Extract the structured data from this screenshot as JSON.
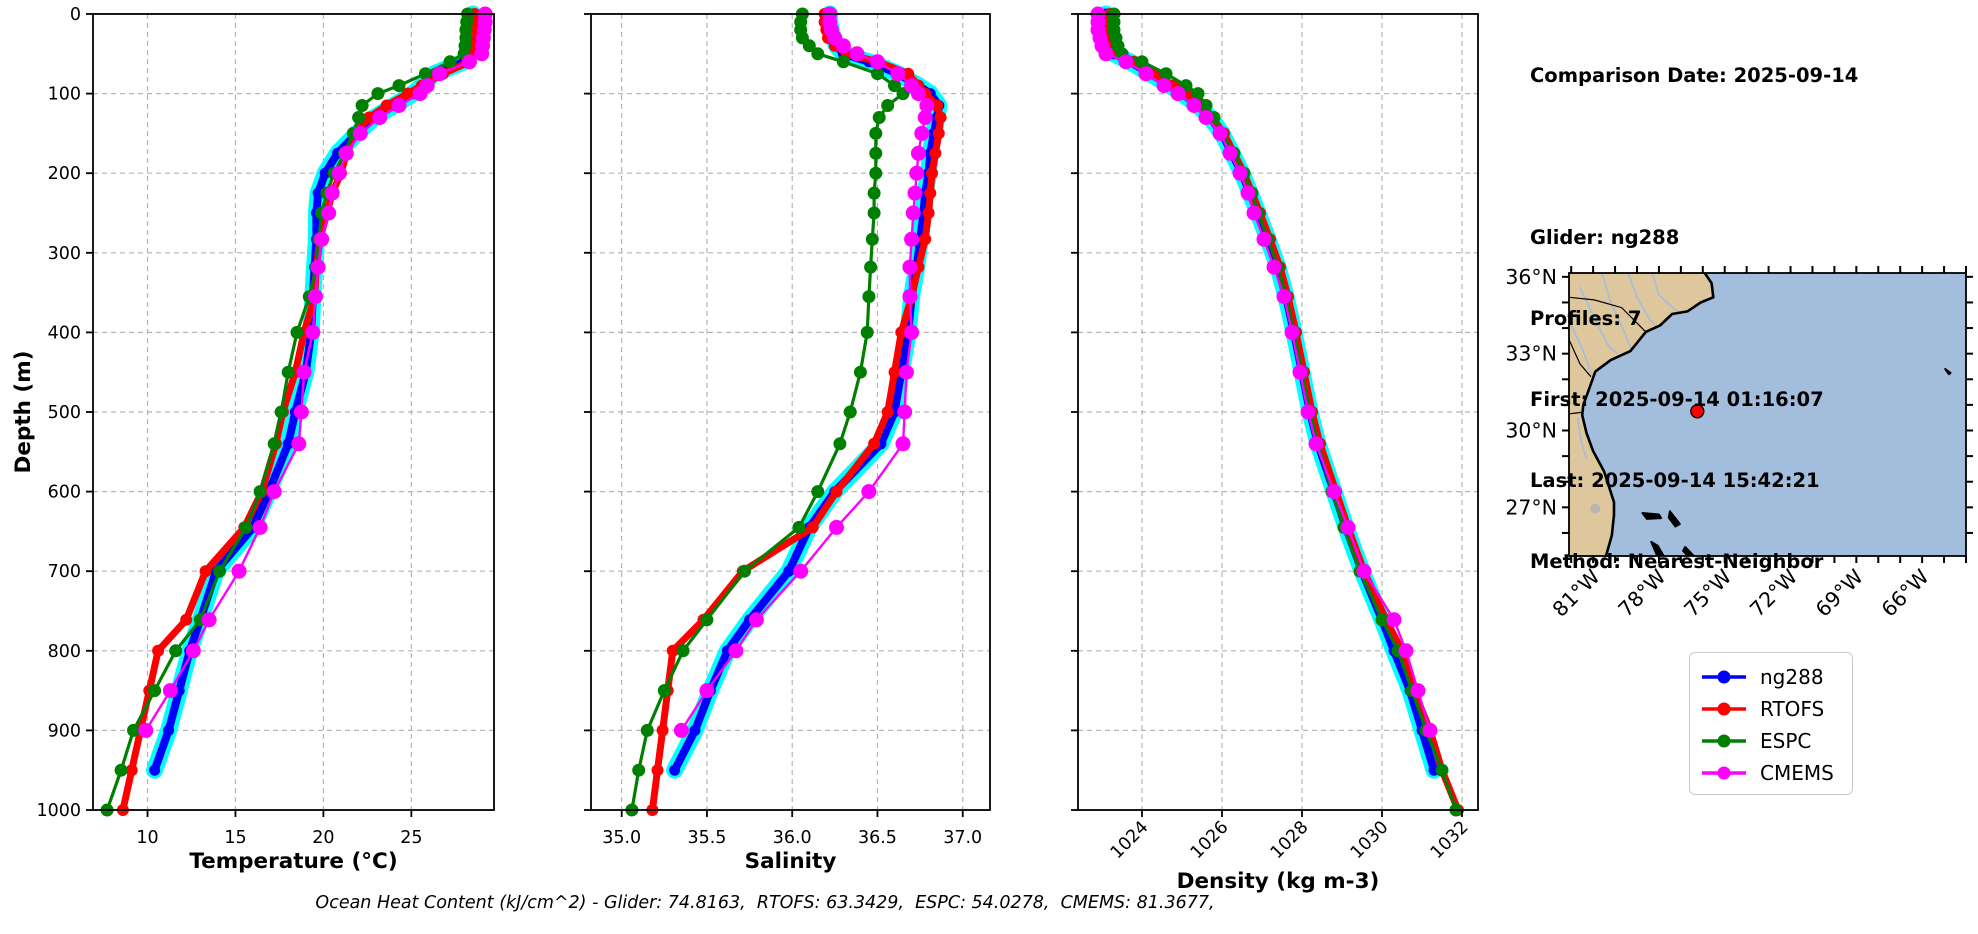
{
  "info_panel": {
    "comparison_date": "Comparison Date: 2025-09-14",
    "lines": [
      "Glider: ng288",
      "Profiles: 7",
      "First: 2025-09-14 01:16:07",
      "Last: 2025-09-14 15:42:21",
      "Method: Nearest-Neighbor"
    ]
  },
  "legend": {
    "items": [
      {
        "label": "ng288",
        "color": "#0000ff"
      },
      {
        "label": "RTOFS",
        "color": "#ff0000"
      },
      {
        "label": "ESPC",
        "color": "#008000"
      },
      {
        "label": "CMEMS",
        "color": "#ff00ff"
      }
    ]
  },
  "footer": {
    "text": "Ocean Heat Content (kJ/cm^2) - Glider: 74.8163,  RTOFS: 63.3429,  ESPC: 54.0278,  CMEMS: 81.3677,"
  },
  "chart_data": [
    {
      "type": "line",
      "name": "temperature-profile",
      "xlabel": "Temperature (°C)",
      "ylabel": "Depth (m)",
      "xlim": [
        6.9,
        29.7
      ],
      "ylim": [
        1000,
        0
      ],
      "xticks": [
        10,
        15,
        20,
        25
      ],
      "xtick_labels": [
        "10",
        "15",
        "20",
        "25"
      ],
      "yticks": [
        0,
        100,
        200,
        300,
        400,
        500,
        600,
        700,
        800,
        900,
        1000
      ],
      "ytick_labels": [
        "0",
        "100",
        "200",
        "300",
        "400",
        "500",
        "600",
        "700",
        "800",
        "900",
        "1000"
      ],
      "grid": true,
      "depths": [
        0,
        10,
        20,
        30,
        40,
        50,
        60,
        75,
        90,
        100,
        115,
        130,
        150,
        175,
        200,
        225,
        250,
        283,
        318,
        355,
        400,
        450,
        500,
        540,
        600,
        645,
        700,
        761,
        800,
        850,
        900,
        950,
        1000
      ],
      "series": [
        {
          "name": "ng288",
          "color": "#0000ff",
          "halo": "#00ffff",
          "width": 8,
          "marker": 5.5,
          "values": [
            28.5,
            28.5,
            28.5,
            28.5,
            28.45,
            28.4,
            28.0,
            26.3,
            25.6,
            25.1,
            24.0,
            22.9,
            21.9,
            20.8,
            20.1,
            19.7,
            19.6,
            19.6,
            19.5,
            19.4,
            19.3,
            19.0,
            18.4,
            18.0,
            16.9,
            16.0,
            13.9,
            13.0,
            12.4,
            11.8,
            11.2,
            10.4,
            null
          ]
        },
        {
          "name": "RTOFS",
          "color": "#ff0000",
          "width": 7,
          "marker": 6,
          "values": [
            28.6,
            28.6,
            28.6,
            28.6,
            28.55,
            28.5,
            28.3,
            26.8,
            25.6,
            24.8,
            23.6,
            22.6,
            21.8,
            21.3,
            21.0,
            20.5,
            20.2,
            19.8,
            19.6,
            19.5,
            18.9,
            18.4,
            17.7,
            17.3,
            16.5,
            15.5,
            13.3,
            12.2,
            10.6,
            10.1,
            9.6,
            9.1,
            8.6
          ]
        },
        {
          "name": "ESPC",
          "color": "#008000",
          "width": 3.2,
          "marker": 6.5,
          "values": [
            28.2,
            28.15,
            28.1,
            28.1,
            28.05,
            28.0,
            27.2,
            25.8,
            24.3,
            23.1,
            22.2,
            22.0,
            21.7,
            21.2,
            20.6,
            20.2,
            19.9,
            19.75,
            19.6,
            19.2,
            18.5,
            18.0,
            17.6,
            17.2,
            16.4,
            15.6,
            14.1,
            13.0,
            11.6,
            10.4,
            9.2,
            8.5,
            7.7
          ]
        },
        {
          "name": "CMEMS",
          "color": "#ff00ff",
          "width": 2.4,
          "marker": 7.5,
          "values": [
            29.2,
            29.2,
            29.15,
            29.1,
            29.05,
            29.0,
            28.3,
            26.6,
            25.9,
            25.5,
            24.3,
            23.2,
            22.1,
            21.3,
            20.9,
            20.5,
            20.3,
            19.9,
            19.7,
            19.55,
            19.4,
            18.9,
            18.75,
            18.6,
            17.2,
            16.4,
            15.2,
            13.5,
            12.6,
            11.3,
            9.9,
            null,
            null
          ]
        }
      ]
    },
    {
      "type": "line",
      "name": "salinity-profile",
      "xlabel": "Salinity",
      "ylabel": "",
      "xlim": [
        34.82,
        37.16
      ],
      "ylim": [
        1000,
        0
      ],
      "xticks": [
        35.0,
        35.5,
        36.0,
        36.5,
        37.0
      ],
      "xtick_labels": [
        "35.0",
        "35.5",
        "36.0",
        "36.5",
        "37.0"
      ],
      "yticks": [
        0,
        100,
        200,
        300,
        400,
        500,
        600,
        700,
        800,
        900,
        1000
      ],
      "ytick_labels": [],
      "grid": true,
      "depths": [
        0,
        10,
        20,
        30,
        40,
        50,
        60,
        75,
        90,
        100,
        115,
        130,
        150,
        175,
        200,
        225,
        250,
        283,
        318,
        355,
        400,
        450,
        500,
        540,
        600,
        645,
        700,
        761,
        800,
        850,
        900,
        950,
        1000
      ],
      "series": [
        {
          "name": "ng288",
          "color": "#0000ff",
          "halo": "#00ffff",
          "width": 8,
          "marker": 5.5,
          "values": [
            36.22,
            36.22,
            36.23,
            36.24,
            36.26,
            36.3,
            36.45,
            36.62,
            36.74,
            36.81,
            36.86,
            36.85,
            36.83,
            36.81,
            36.8,
            36.78,
            36.77,
            36.75,
            36.73,
            36.7,
            36.68,
            36.64,
            36.6,
            36.52,
            36.25,
            36.1,
            35.98,
            35.75,
            35.62,
            35.52,
            35.43,
            35.31,
            null
          ]
        },
        {
          "name": "RTOFS",
          "color": "#ff0000",
          "width": 7,
          "marker": 6,
          "values": [
            36.19,
            36.19,
            36.2,
            36.21,
            36.25,
            36.32,
            36.5,
            36.68,
            36.74,
            36.78,
            36.85,
            36.87,
            36.86,
            36.84,
            36.82,
            36.81,
            36.8,
            36.78,
            36.74,
            36.7,
            36.64,
            36.6,
            36.56,
            36.48,
            36.26,
            36.12,
            35.71,
            35.48,
            35.3,
            35.27,
            35.24,
            35.21,
            35.18
          ]
        },
        {
          "name": "ESPC",
          "color": "#008000",
          "width": 3.2,
          "marker": 6.5,
          "values": [
            36.06,
            36.05,
            36.05,
            36.06,
            36.1,
            36.15,
            36.3,
            36.5,
            36.6,
            36.65,
            36.56,
            36.51,
            36.49,
            36.49,
            36.49,
            36.48,
            36.48,
            36.47,
            36.46,
            36.45,
            36.44,
            36.4,
            36.34,
            36.28,
            36.15,
            36.04,
            35.72,
            35.5,
            35.36,
            35.25,
            35.15,
            35.1,
            35.06
          ]
        },
        {
          "name": "CMEMS",
          "color": "#ff00ff",
          "width": 2.4,
          "marker": 7.5,
          "values": [
            36.22,
            36.22,
            36.23,
            36.25,
            36.3,
            36.38,
            36.5,
            36.62,
            36.7,
            36.74,
            36.79,
            36.78,
            36.76,
            36.74,
            36.73,
            36.72,
            36.71,
            36.7,
            36.69,
            36.69,
            36.7,
            36.67,
            36.66,
            36.65,
            36.45,
            36.26,
            36.05,
            35.79,
            35.67,
            35.5,
            35.35,
            null,
            null
          ]
        }
      ]
    },
    {
      "type": "line",
      "name": "density-profile",
      "xlabel": "Density (kg m-3)",
      "ylabel": "",
      "xlim": [
        1022.4,
        1032.4
      ],
      "ylim": [
        1000,
        0
      ],
      "xticks": [
        1024,
        1026,
        1028,
        1030,
        1032
      ],
      "xtick_labels": [
        "1024",
        "1026",
        "1028",
        "1030",
        "1032"
      ],
      "rotate_xticks": true,
      "yticks": [
        0,
        100,
        200,
        300,
        400,
        500,
        600,
        700,
        800,
        900,
        1000
      ],
      "ytick_labels": [],
      "grid": true,
      "depths": [
        0,
        10,
        20,
        30,
        40,
        50,
        60,
        75,
        90,
        100,
        115,
        130,
        150,
        175,
        200,
        225,
        250,
        283,
        318,
        355,
        400,
        450,
        500,
        540,
        600,
        645,
        700,
        761,
        800,
        850,
        900,
        950,
        1000
      ],
      "series": [
        {
          "name": "ng288",
          "color": "#0000ff",
          "halo": "#00ffff",
          "width": 8,
          "marker": 5.5,
          "values": [
            1023.1,
            1023.1,
            1023.1,
            1023.15,
            1023.2,
            1023.3,
            1023.7,
            1024.2,
            1024.7,
            1025.0,
            1025.4,
            1025.7,
            1026.0,
            1026.25,
            1026.5,
            1026.7,
            1026.9,
            1027.15,
            1027.4,
            1027.6,
            1027.8,
            1028.0,
            1028.2,
            1028.4,
            1028.8,
            1029.1,
            1029.5,
            1030.0,
            1030.3,
            1030.7,
            1031.0,
            1031.3,
            null
          ]
        },
        {
          "name": "RTOFS",
          "color": "#ff0000",
          "width": 7,
          "marker": 6,
          "values": [
            1023.2,
            1023.2,
            1023.2,
            1023.25,
            1023.3,
            1023.4,
            1023.8,
            1024.3,
            1024.8,
            1025.1,
            1025.45,
            1025.75,
            1026.05,
            1026.3,
            1026.55,
            1026.75,
            1026.95,
            1027.2,
            1027.45,
            1027.65,
            1027.85,
            1028.05,
            1028.25,
            1028.45,
            1028.85,
            1029.15,
            1029.55,
            1030.1,
            1030.5,
            1030.8,
            1031.2,
            1031.5,
            1031.9
          ]
        },
        {
          "name": "ESPC",
          "color": "#008000",
          "width": 3.2,
          "marker": 6.5,
          "values": [
            1023.3,
            1023.3,
            1023.3,
            1023.35,
            1023.4,
            1023.5,
            1024.0,
            1024.6,
            1025.1,
            1025.4,
            1025.6,
            1025.8,
            1026.0,
            1026.3,
            1026.55,
            1026.75,
            1026.9,
            1027.15,
            1027.4,
            1027.6,
            1027.8,
            1028.0,
            1028.2,
            1028.4,
            1028.75,
            1029.05,
            1029.45,
            1030.0,
            1030.4,
            1030.75,
            1031.1,
            1031.5,
            1031.85
          ]
        },
        {
          "name": "CMEMS",
          "color": "#ff00ff",
          "width": 2.4,
          "marker": 7.5,
          "values": [
            1022.9,
            1022.9,
            1022.9,
            1022.95,
            1023.0,
            1023.1,
            1023.6,
            1024.1,
            1024.55,
            1024.9,
            1025.3,
            1025.6,
            1025.95,
            1026.2,
            1026.45,
            1026.65,
            1026.8,
            1027.05,
            1027.3,
            1027.55,
            1027.75,
            1027.95,
            1028.15,
            1028.35,
            1028.8,
            1029.15,
            1029.55,
            1030.3,
            1030.6,
            1030.9,
            1031.2,
            null,
            null
          ]
        }
      ]
    }
  ],
  "map": {
    "extent": {
      "lon_min": -82.1,
      "lon_max": -64.0,
      "lat_min": 25.1,
      "lat_max": 36.15
    },
    "lat_ticks": [
      {
        "value": 36,
        "label": "36°N"
      },
      {
        "value": 33,
        "label": "33°N"
      },
      {
        "value": 30,
        "label": "30°N"
      },
      {
        "value": 27,
        "label": "27°N"
      }
    ],
    "lon_ticks": [
      {
        "value": -81,
        "label": "81°W"
      },
      {
        "value": -78,
        "label": "78°W"
      },
      {
        "value": -75,
        "label": "75°W"
      },
      {
        "value": -72,
        "label": "72°W"
      },
      {
        "value": -69,
        "label": "69°W"
      },
      {
        "value": -66,
        "label": "66°W"
      }
    ],
    "marker": {
      "lon": -76.25,
      "lat": 30.75,
      "color": "#ff0000"
    },
    "colors": {
      "land": "#dec79c",
      "ocean": "#a3bddc",
      "river": "#a3bddc",
      "coast": "#000000",
      "lake": "#b6b6b6"
    },
    "coast": [
      [
        -75.95,
        36.2
      ],
      [
        -75.6,
        35.75
      ],
      [
        -75.52,
        35.2
      ],
      [
        -76.1,
        35.0
      ],
      [
        -76.7,
        34.65
      ],
      [
        -77.4,
        34.55
      ],
      [
        -77.95,
        34.1
      ],
      [
        -78.6,
        33.85
      ],
      [
        -79.3,
        33.1
      ],
      [
        -80.2,
        32.75
      ],
      [
        -80.9,
        32.3
      ],
      [
        -81.15,
        31.7
      ],
      [
        -81.45,
        31.0
      ],
      [
        -81.5,
        30.6
      ],
      [
        -81.3,
        29.9
      ],
      [
        -81.0,
        29.2
      ],
      [
        -80.5,
        28.4
      ],
      [
        -80.05,
        27.2
      ],
      [
        -80.05,
        26.7
      ],
      [
        -80.15,
        25.9
      ],
      [
        -80.45,
        25.0
      ]
    ],
    "borders": [
      [
        [
          -78.6,
          33.85
        ],
        [
          -79.7,
          34.8
        ],
        [
          -80.95,
          35.1
        ],
        [
          -82.1,
          35.2
        ]
      ],
      [
        [
          -81.1,
          32.1
        ],
        [
          -81.6,
          32.6
        ],
        [
          -82.1,
          33.55
        ]
      ],
      [
        [
          -82.1,
          30.65
        ],
        [
          -81.45,
          30.72
        ]
      ]
    ],
    "rivers": [
      [
        [
          -78.3,
          36.15
        ],
        [
          -78.0,
          35.3
        ],
        [
          -77.5,
          34.9
        ],
        [
          -77.1,
          34.6
        ]
      ],
      [
        [
          -79.4,
          36.15
        ],
        [
          -79.0,
          35.2
        ],
        [
          -78.4,
          34.3
        ],
        [
          -78.0,
          34.0
        ]
      ],
      [
        [
          -80.6,
          36.15
        ],
        [
          -80.2,
          35.0
        ],
        [
          -79.6,
          33.9
        ],
        [
          -79.25,
          33.15
        ]
      ],
      [
        [
          -81.6,
          35.6
        ],
        [
          -81.0,
          34.5
        ],
        [
          -80.3,
          33.3
        ],
        [
          -79.9,
          33.0
        ]
      ],
      [
        [
          -82.1,
          34.3
        ],
        [
          -81.5,
          33.2
        ],
        [
          -81.05,
          32.15
        ]
      ],
      [
        [
          -81.7,
          30.5
        ],
        [
          -81.55,
          29.6
        ],
        [
          -81.3,
          28.9
        ]
      ]
    ],
    "islands": [
      [
        [
          -78.75,
          26.78
        ],
        [
          -78.0,
          26.72
        ],
        [
          -77.9,
          26.58
        ],
        [
          -78.55,
          26.55
        ]
      ],
      [
        [
          -77.5,
          26.85
        ],
        [
          -77.05,
          26.35
        ],
        [
          -77.25,
          26.25
        ],
        [
          -77.55,
          26.6
        ]
      ],
      [
        [
          -78.35,
          25.65
        ],
        [
          -78.1,
          25.15
        ],
        [
          -77.75,
          25.05
        ],
        [
          -78.05,
          25.5
        ]
      ],
      [
        [
          -76.8,
          25.45
        ],
        [
          -76.35,
          25.05
        ],
        [
          -76.55,
          25.0
        ],
        [
          -76.9,
          25.3
        ]
      ],
      [
        [
          -64.95,
          32.4
        ],
        [
          -64.7,
          32.25
        ],
        [
          -64.78,
          32.2
        ]
      ]
    ],
    "lake": {
      "lon": -80.9,
      "lat": 26.95,
      "r": 5
    }
  }
}
